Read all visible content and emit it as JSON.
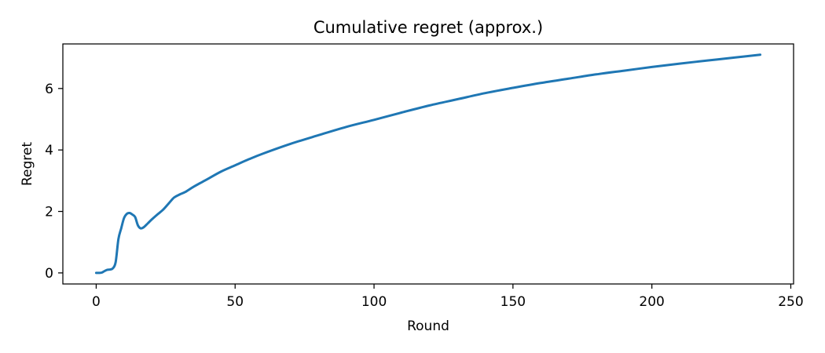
{
  "chart_data": {
    "type": "line",
    "title": "Cumulative regret (approx.)",
    "xlabel": "Round",
    "ylabel": "Regret",
    "xlim": [
      -12,
      251
    ],
    "ylim": [
      -0.36,
      7.45
    ],
    "xticks": [
      0,
      50,
      100,
      150,
      200,
      250
    ],
    "yticks": [
      0,
      2,
      4,
      6
    ],
    "grid": false,
    "legend": "none",
    "series": [
      {
        "color": "#1f77b4",
        "x": [
          0,
          1,
          2,
          3,
          4,
          5,
          6,
          7,
          8,
          9,
          10,
          11,
          12,
          13,
          14,
          15,
          16,
          17,
          18,
          19,
          20,
          22,
          24,
          26,
          28,
          30,
          32,
          35,
          40,
          45,
          50,
          55,
          60,
          70,
          80,
          90,
          100,
          110,
          120,
          130,
          140,
          150,
          160,
          170,
          180,
          190,
          200,
          210,
          220,
          230,
          239
        ],
        "y": [
          0.0,
          0.0,
          0.01,
          0.06,
          0.1,
          0.11,
          0.15,
          0.35,
          1.1,
          1.45,
          1.78,
          1.92,
          1.95,
          1.9,
          1.82,
          1.55,
          1.45,
          1.48,
          1.56,
          1.65,
          1.74,
          1.9,
          2.05,
          2.25,
          2.45,
          2.55,
          2.63,
          2.8,
          3.05,
          3.3,
          3.5,
          3.7,
          3.88,
          4.2,
          4.48,
          4.75,
          4.98,
          5.22,
          5.45,
          5.65,
          5.85,
          6.02,
          6.18,
          6.32,
          6.46,
          6.58,
          6.7,
          6.81,
          6.91,
          7.01,
          7.1
        ]
      }
    ]
  }
}
